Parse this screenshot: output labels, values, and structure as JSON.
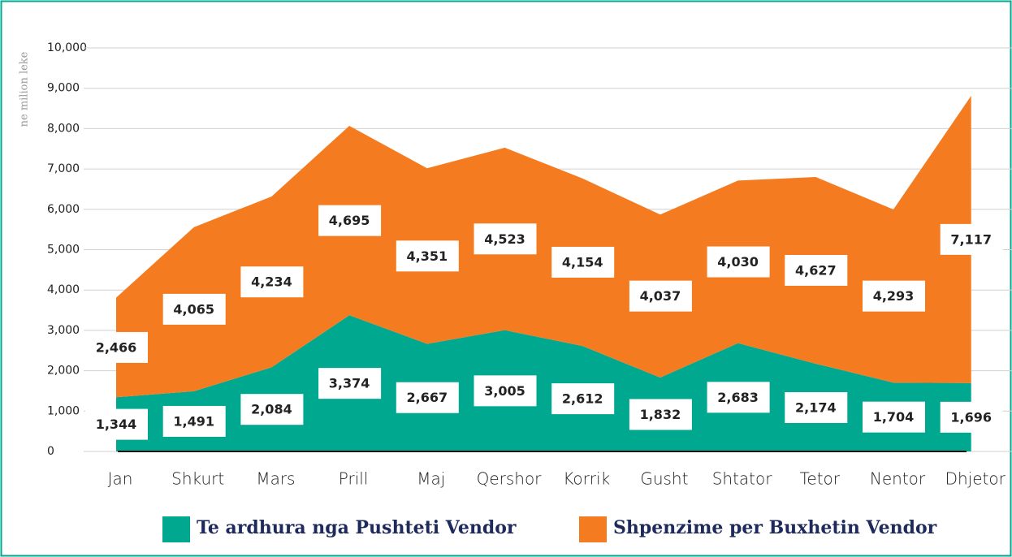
{
  "chart_data": {
    "type": "stacked-area",
    "y_axis_label": "ne milion leke",
    "categories": [
      "Jan",
      "Shkurt",
      "Mars",
      "Prill",
      "Maj",
      "Qershor",
      "Korrik",
      "Gusht",
      "Shtator",
      "Tetor",
      "Nentor",
      "Dhjetor"
    ],
    "series": [
      {
        "name": "Te ardhura nga Pushteti Vendor",
        "color": "#00a88f",
        "values": [
          1344,
          1491,
          2084,
          3374,
          2667,
          3005,
          2612,
          1832,
          2683,
          2174,
          1704,
          1696
        ],
        "value_labels": [
          "1,344",
          "1,491",
          "2,084",
          "3,374",
          "2,667",
          "3,005",
          "2,612",
          "1,832",
          "2,683",
          "2,174",
          "1,704",
          "1,696"
        ]
      },
      {
        "name": "Shpenzime per Buxhetin Vendor",
        "color": "#f47b20",
        "values": [
          2466,
          4065,
          4234,
          4695,
          4351,
          4523,
          4154,
          4037,
          4030,
          4627,
          4293,
          7117
        ],
        "value_labels": [
          "2,466",
          "4,065",
          "4,234",
          "4,695",
          "4,351",
          "4,523",
          "4,154",
          "4,037",
          "4,030",
          "4,627",
          "4,293",
          "7,117"
        ]
      }
    ],
    "ylim": [
      0,
      10000
    ],
    "yticks": [
      0,
      {
        "value": 1000,
        "label": "1,000"
      },
      {
        "value": 2000,
        "label": "2,000"
      },
      {
        "value": 3000,
        "label": "3,000"
      },
      {
        "value": 4000,
        "label": "4,000"
      },
      {
        "value": 5000,
        "label": "5,000"
      },
      {
        "value": 6000,
        "label": "6,000"
      },
      {
        "value": 7000,
        "label": "7,000"
      },
      {
        "value": 8000,
        "label": "8,000"
      },
      {
        "value": 9000,
        "label": "9,000"
      },
      {
        "value": 10000,
        "label": "10,000"
      }
    ],
    "grid": true
  }
}
